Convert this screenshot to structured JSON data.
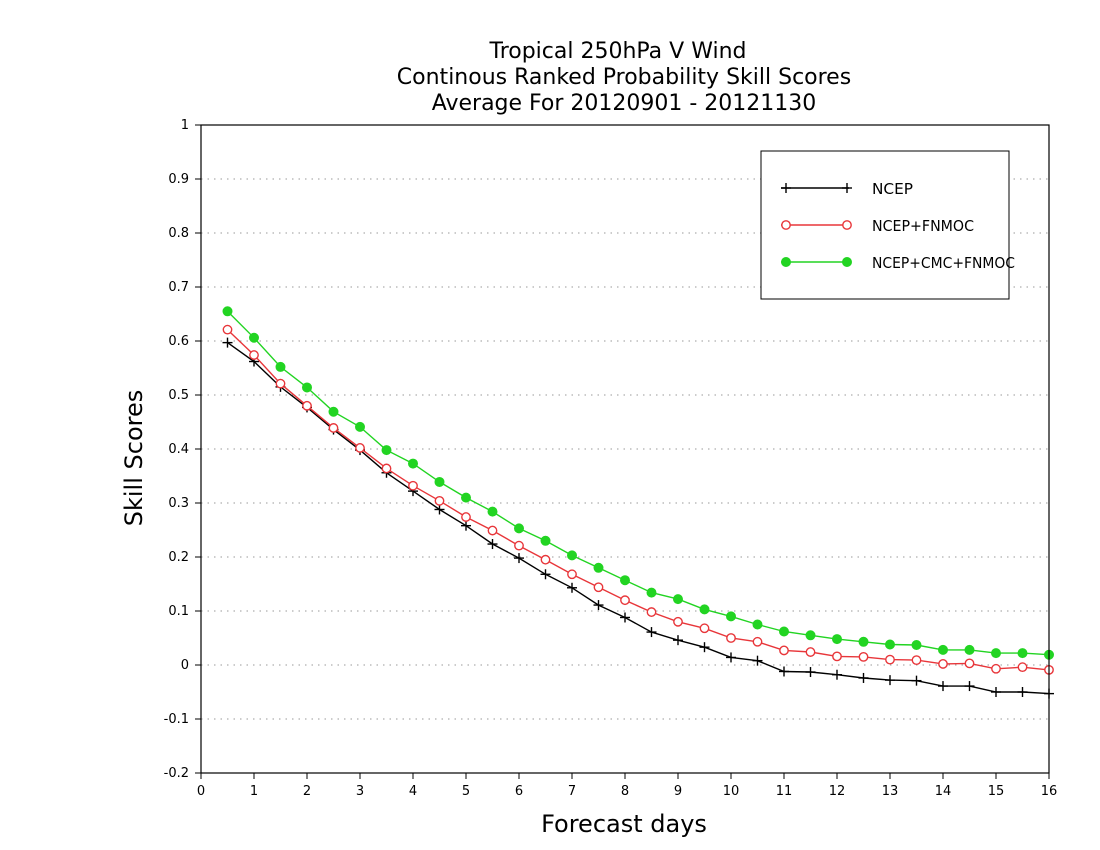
{
  "chart_data": {
    "type": "line",
    "title": [
      "Tropical 250hPa V Wind",
      "Continous Ranked Probability Skill Scores",
      "Average For 20120901 - 20121130"
    ],
    "xlabel": "Forecast days",
    "ylabel": "Skill Scores",
    "xlim": [
      0,
      16
    ],
    "ylim": [
      -0.2,
      1
    ],
    "xticks": [
      "0",
      "1",
      "2",
      "3",
      "4",
      "5",
      "6",
      "7",
      "8",
      "9",
      "10",
      "11",
      "12",
      "13",
      "14",
      "15",
      "16"
    ],
    "yticks": [
      "-0.2",
      "-0.1",
      "0",
      "0.1",
      "0.2",
      "0.3",
      "0.4",
      "0.5",
      "0.6",
      "0.7",
      "0.8",
      "0.9",
      "1"
    ],
    "grid": true,
    "grid_style": "dotted horizontal",
    "legend_position": "top-right",
    "x": [
      0.5,
      1,
      1.5,
      2,
      2.5,
      3,
      3.5,
      4,
      4.5,
      5,
      5.5,
      6,
      6.5,
      7,
      7.5,
      8,
      8.5,
      9,
      9.5,
      10,
      10.5,
      11,
      11.5,
      12,
      12.5,
      13,
      13.5,
      14,
      14.5,
      15,
      15.5,
      16
    ],
    "series": [
      {
        "name": "NCEP",
        "color": "#000000",
        "marker": "plus",
        "values": [
          0.597,
          0.562,
          0.515,
          0.477,
          0.436,
          0.398,
          0.356,
          0.322,
          0.288,
          0.258,
          0.224,
          0.198,
          0.168,
          0.143,
          0.111,
          0.088,
          0.061,
          0.046,
          0.033,
          0.014,
          0.008,
          -0.012,
          -0.013,
          -0.018,
          -0.024,
          -0.028,
          -0.029,
          -0.039,
          -0.039,
          -0.05,
          -0.05,
          -0.053
        ]
      },
      {
        "name": "NCEP+FNMOC",
        "color": "#e8363a",
        "marker": "open-circle",
        "values": [
          0.621,
          0.574,
          0.521,
          0.48,
          0.439,
          0.402,
          0.364,
          0.332,
          0.304,
          0.274,
          0.249,
          0.221,
          0.195,
          0.168,
          0.144,
          0.12,
          0.098,
          0.08,
          0.068,
          0.05,
          0.043,
          0.027,
          0.024,
          0.016,
          0.015,
          0.01,
          0.009,
          0.002,
          0.003,
          -0.007,
          -0.004,
          -0.009
        ]
      },
      {
        "name": "NCEP+CMC+FNMOC",
        "color": "#22d422",
        "marker": "filled-circle",
        "values": [
          0.655,
          0.606,
          0.552,
          0.514,
          0.469,
          0.441,
          0.398,
          0.373,
          0.339,
          0.31,
          0.284,
          0.253,
          0.23,
          0.203,
          0.18,
          0.157,
          0.134,
          0.122,
          0.103,
          0.09,
          0.075,
          0.062,
          0.055,
          0.048,
          0.043,
          0.038,
          0.037,
          0.028,
          0.028,
          0.022,
          0.022,
          0.019
        ]
      }
    ]
  }
}
